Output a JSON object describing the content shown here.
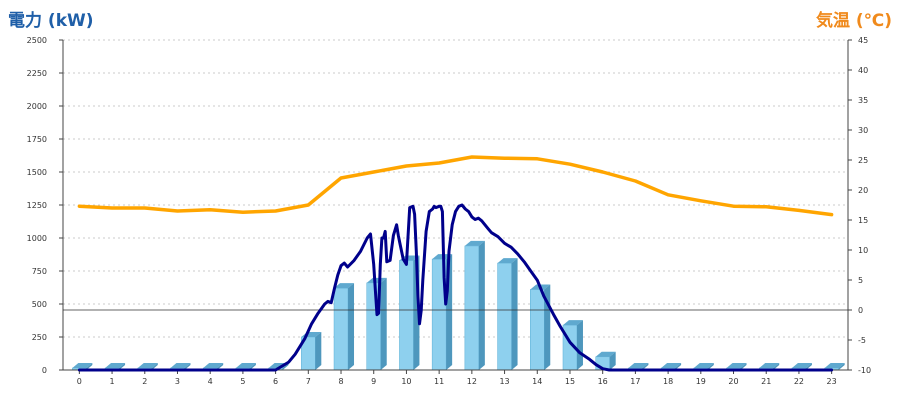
{
  "header": {
    "left_title": "電力 (kW)",
    "right_title": "気温 (℃)"
  },
  "chart_data": {
    "type": "bar",
    "categories": [
      "0",
      "1",
      "2",
      "3",
      "4",
      "5",
      "6",
      "7",
      "8",
      "9",
      "10",
      "11",
      "12",
      "13",
      "14",
      "15",
      "16",
      "17",
      "18",
      "19",
      "20",
      "21",
      "22",
      "23"
    ],
    "y_left": {
      "label": "電力 (kW)",
      "ylim": [
        0,
        2500
      ],
      "ticks": [
        0,
        250,
        500,
        750,
        1000,
        1250,
        1500,
        1750,
        2000,
        2250,
        2500
      ]
    },
    "y_right": {
      "label": "気温 (℃)",
      "ylim": [
        -10,
        45
      ],
      "ticks": [
        -10,
        -5,
        0,
        5,
        10,
        15,
        20,
        25,
        30,
        35,
        40,
        45
      ]
    },
    "grid": "horizontal dashed",
    "series": [
      {
        "kind": "bar",
        "axis": "left",
        "color": "#87CEEB",
        "values": [
          15,
          15,
          15,
          15,
          15,
          15,
          15,
          250,
          620,
          660,
          830,
          840,
          940,
          810,
          610,
          340,
          100,
          15,
          15,
          15,
          15,
          15,
          15,
          15
        ]
      },
      {
        "kind": "line",
        "axis": "left",
        "color": "#00008B",
        "points": [
          [
            0,
            0
          ],
          [
            1,
            0
          ],
          [
            2,
            0
          ],
          [
            3,
            0
          ],
          [
            4,
            0
          ],
          [
            5,
            0
          ],
          [
            6,
            0
          ],
          [
            6.4,
            60
          ],
          [
            6.6,
            120
          ],
          [
            6.9,
            240
          ],
          [
            7.1,
            350
          ],
          [
            7.3,
            430
          ],
          [
            7.5,
            500
          ],
          [
            7.6,
            520
          ],
          [
            7.7,
            510
          ],
          [
            7.8,
            620
          ],
          [
            7.9,
            720
          ],
          [
            8.0,
            790
          ],
          [
            8.1,
            810
          ],
          [
            8.2,
            780
          ],
          [
            8.4,
            830
          ],
          [
            8.6,
            900
          ],
          [
            8.8,
            1000
          ],
          [
            8.9,
            1030
          ],
          [
            9.0,
            800
          ],
          [
            9.05,
            600
          ],
          [
            9.1,
            420
          ],
          [
            9.15,
            430
          ],
          [
            9.2,
            800
          ],
          [
            9.25,
            1000
          ],
          [
            9.3,
            1000
          ],
          [
            9.35,
            1050
          ],
          [
            9.4,
            820
          ],
          [
            9.5,
            830
          ],
          [
            9.6,
            1020
          ],
          [
            9.7,
            1100
          ],
          [
            9.75,
            1020
          ],
          [
            9.8,
            960
          ],
          [
            9.9,
            840
          ],
          [
            10.0,
            800
          ],
          [
            10.1,
            1230
          ],
          [
            10.2,
            1240
          ],
          [
            10.25,
            1180
          ],
          [
            10.3,
            900
          ],
          [
            10.35,
            570
          ],
          [
            10.4,
            350
          ],
          [
            10.45,
            450
          ],
          [
            10.5,
            680
          ],
          [
            10.6,
            1050
          ],
          [
            10.7,
            1200
          ],
          [
            10.8,
            1220
          ],
          [
            10.85,
            1240
          ],
          [
            10.9,
            1230
          ],
          [
            11.0,
            1240
          ],
          [
            11.05,
            1240
          ],
          [
            11.1,
            1200
          ],
          [
            11.15,
            700
          ],
          [
            11.2,
            500
          ],
          [
            11.25,
            600
          ],
          [
            11.3,
            900
          ],
          [
            11.4,
            1100
          ],
          [
            11.5,
            1200
          ],
          [
            11.6,
            1240
          ],
          [
            11.7,
            1250
          ],
          [
            11.8,
            1220
          ],
          [
            11.9,
            1200
          ],
          [
            12.0,
            1160
          ],
          [
            12.1,
            1140
          ],
          [
            12.2,
            1150
          ],
          [
            12.3,
            1130
          ],
          [
            12.5,
            1070
          ],
          [
            12.6,
            1040
          ],
          [
            12.8,
            1010
          ],
          [
            13.0,
            960
          ],
          [
            13.2,
            930
          ],
          [
            13.4,
            880
          ],
          [
            13.6,
            820
          ],
          [
            13.8,
            750
          ],
          [
            14.0,
            680
          ],
          [
            14.2,
            560
          ],
          [
            14.5,
            420
          ],
          [
            14.7,
            330
          ],
          [
            15.0,
            210
          ],
          [
            15.3,
            130
          ],
          [
            15.6,
            80
          ],
          [
            15.8,
            40
          ],
          [
            16.0,
            10
          ],
          [
            16.2,
            0
          ],
          [
            17,
            0
          ],
          [
            18,
            0
          ],
          [
            19,
            0
          ],
          [
            20,
            0
          ],
          [
            21,
            0
          ],
          [
            22,
            0
          ],
          [
            23,
            0
          ]
        ]
      },
      {
        "kind": "line",
        "axis": "right",
        "color": "#FFA500",
        "points": [
          [
            0,
            17.3
          ],
          [
            1,
            17.0
          ],
          [
            2,
            17.0
          ],
          [
            3,
            16.5
          ],
          [
            4,
            16.7
          ],
          [
            5,
            16.3
          ],
          [
            6,
            16.5
          ],
          [
            7,
            17.5
          ],
          [
            8,
            22.0
          ],
          [
            9,
            23.0
          ],
          [
            10,
            24.0
          ],
          [
            11,
            24.5
          ],
          [
            12,
            25.5
          ],
          [
            13,
            25.3
          ],
          [
            14,
            25.2
          ],
          [
            15,
            24.3
          ],
          [
            16,
            23.0
          ],
          [
            17,
            21.5
          ],
          [
            18,
            19.2
          ],
          [
            19,
            18.2
          ],
          [
            20,
            17.3
          ],
          [
            21,
            17.2
          ],
          [
            22,
            16.6
          ],
          [
            23,
            15.9
          ]
        ]
      }
    ]
  }
}
